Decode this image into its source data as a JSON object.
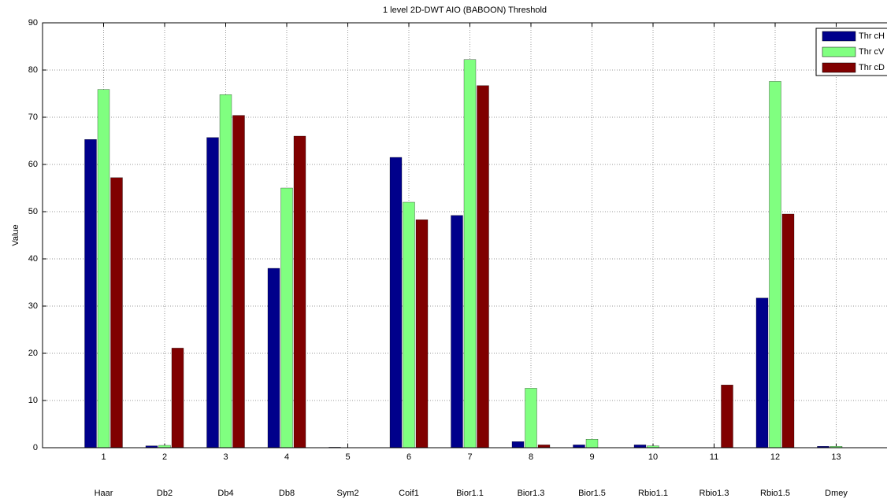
{
  "chart_data": {
    "type": "bar",
    "title": "1 level 2D-DWT AIO (BABOON) Threshold",
    "y_label": "Value",
    "x": [
      1,
      2,
      3,
      4,
      5,
      6,
      7,
      8,
      9,
      10,
      11,
      12,
      13
    ],
    "categories": [
      "Haar",
      "Db2",
      "Db4",
      "Db8",
      "Sym2",
      "Coif1",
      "Bior1.1",
      "Bior1.3",
      "Bior1.5",
      "Rbio1.1",
      "Rbio1.3",
      "Rbio1.5",
      "Dmey"
    ],
    "series": [
      {
        "name": "Thr cH",
        "color": "#00008b",
        "values": [
          65.3,
          0.4,
          65.7,
          38,
          0.1,
          61.5,
          49.2,
          1.3,
          0.6,
          0.6,
          0,
          31.7,
          0.3
        ]
      },
      {
        "name": "Thr cV",
        "color": "#80ff80",
        "values": [
          75.9,
          0.5,
          74.8,
          55,
          0,
          52,
          82.2,
          12.6,
          1.8,
          0.4,
          0,
          77.6,
          0.3
        ]
      },
      {
        "name": "Thr cD",
        "color": "#800000",
        "values": [
          57.2,
          21.1,
          70.4,
          66,
          0,
          48.3,
          76.7,
          0.6,
          0,
          0,
          13.3,
          49.5,
          0
        ]
      }
    ],
    "xlim": [
      0,
      14
    ],
    "xticks": [
      1,
      2,
      3,
      4,
      5,
      6,
      7,
      8,
      9,
      10,
      11,
      12,
      13
    ],
    "ylim": [
      0,
      90
    ],
    "yticks": [
      0,
      10,
      20,
      30,
      40,
      50,
      60,
      70,
      80,
      90
    ],
    "grid": true,
    "legend": "upper right"
  }
}
